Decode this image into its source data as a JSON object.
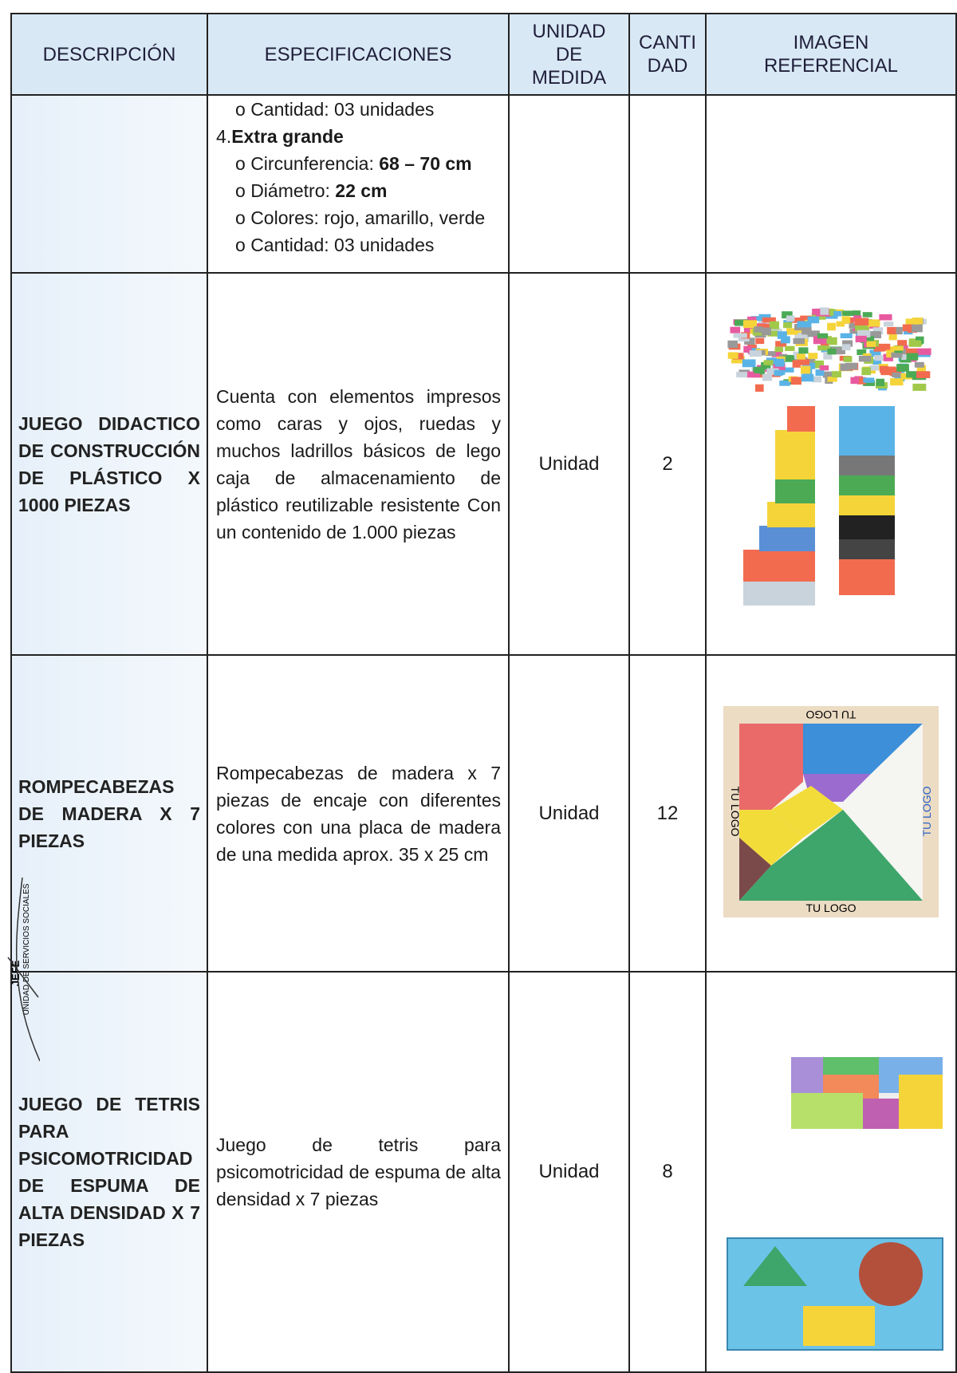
{
  "header": {
    "description": "DESCRIPCIÓN",
    "specifications": "ESPECIFICACIONES",
    "unit": [
      "UNIDAD",
      "DE",
      "MEDIDA"
    ],
    "quantity": [
      "CANTI",
      "DAD"
    ],
    "image": [
      "IMAGEN",
      "REFERENCIAL"
    ]
  },
  "continuation": {
    "lines": [
      {
        "bullet": "o",
        "text": "Cantidad: 03 unidades"
      },
      {
        "number": "4.",
        "bold": "Extra grande"
      },
      {
        "bullet": "o",
        "text": "Circunferencia:",
        "bold": "68 – 70 cm"
      },
      {
        "bullet": "o",
        "text": "Diámetro:",
        "bold": "22 cm"
      },
      {
        "bullet": "o",
        "text": "Colores: rojo, amarillo, verde"
      },
      {
        "bullet": "o",
        "text": "Cantidad: 03 unidades"
      }
    ]
  },
  "rows": [
    {
      "description": "JUEGO DIDACTICO DE CONSTRUCCIÓN DE PLÁSTICO X 1000 PIEZAS",
      "specification": "Cuenta con elementos impresos como caras y ojos, ruedas y muchos ladrillos básicos de lego caja de almacenamiento de plástico reutilizable resistente Con un contenido de 1.000 piezas",
      "unit": "Unidad",
      "quantity": 2
    },
    {
      "description": "ROMPECABEZAS DE MADERA X 7 PIEZAS",
      "specification": "Rompecabezas de madera x 7 piezas de encaje con diferentes colores con una placa de madera de una medida aprox. 35 x 25 cm",
      "unit": "Unidad",
      "quantity": 12,
      "image_text": "TU LOGO"
    },
    {
      "description": "JUEGO DE TETRIS PARA PSICOMOTRICIDAD DE ESPUMA DE ALTA DENSIDAD X 7 PIEZAS",
      "specification": "Juego de tetris para psicomotricidad de espuma de alta densidad x 7 piezas",
      "unit": "Unidad",
      "quantity": 8
    }
  ],
  "stamp": {
    "title": "JEFE",
    "unit": "UNIDAD DE SERVICIOS SOCIALES"
  }
}
